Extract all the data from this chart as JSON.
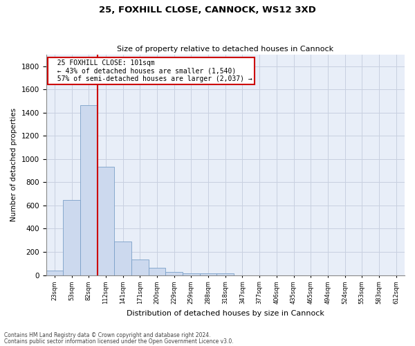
{
  "title1": "25, FOXHILL CLOSE, CANNOCK, WS12 3XD",
  "title2": "Size of property relative to detached houses in Cannock",
  "xlabel": "Distribution of detached houses by size in Cannock",
  "ylabel": "Number of detached properties",
  "bar_color": "#ccd9ee",
  "bar_edge_color": "#7a9fc8",
  "categories": [
    "23sqm",
    "53sqm",
    "82sqm",
    "112sqm",
    "141sqm",
    "171sqm",
    "200sqm",
    "229sqm",
    "259sqm",
    "288sqm",
    "318sqm",
    "347sqm",
    "377sqm",
    "406sqm",
    "435sqm",
    "465sqm",
    "494sqm",
    "524sqm",
    "553sqm",
    "583sqm",
    "612sqm"
  ],
  "bar_heights": [
    38,
    648,
    1466,
    935,
    290,
    137,
    62,
    25,
    13,
    13,
    13,
    0,
    0,
    0,
    0,
    0,
    0,
    0,
    0,
    0,
    0
  ],
  "vline_color": "#cc0000",
  "annotation_box_edge": "#cc0000",
  "annotation_title": "25 FOXHILL CLOSE: 101sqm",
  "annotation_line1": "← 43% of detached houses are smaller (1,540)",
  "annotation_line2": "57% of semi-detached houses are larger (2,037) →",
  "ylim": [
    0,
    1900
  ],
  "yticks": [
    0,
    200,
    400,
    600,
    800,
    1000,
    1200,
    1400,
    1600,
    1800
  ],
  "grid_color": "#c8d0e0",
  "background_color": "#e8eef8",
  "footnote1": "Contains HM Land Registry data © Crown copyright and database right 2024.",
  "footnote2": "Contains public sector information licensed under the Open Government Licence v3.0."
}
